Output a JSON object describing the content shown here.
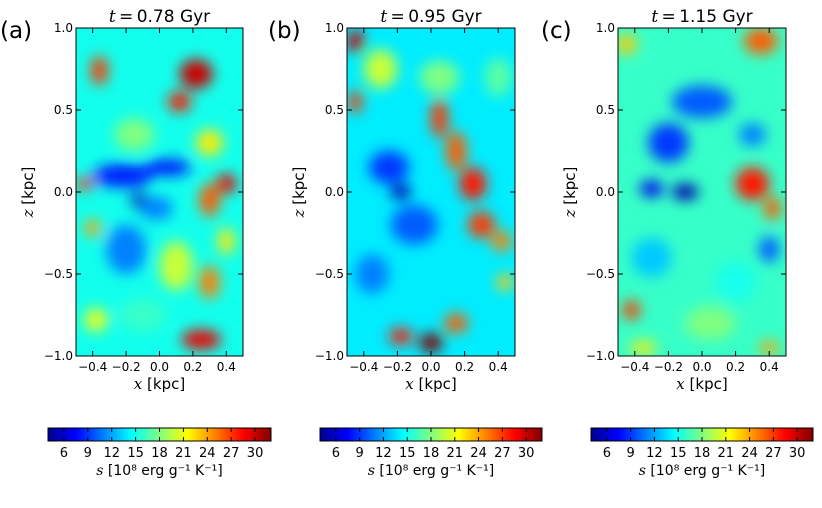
{
  "figure": {
    "colormap": [
      "#00008f",
      "#0000ff",
      "#0080ff",
      "#00ffff",
      "#80ff80",
      "#ffff00",
      "#ff8000",
      "#ff0000",
      "#800000"
    ]
  },
  "chart_data": [
    {
      "type": "heatmap",
      "panel_label": "(a)",
      "title": "t = 0.78 Gyr",
      "time": {
        "symbol": "t",
        "value": "0.78",
        "unit": "Gyr"
      },
      "xlabel": "x [kpc]",
      "ylabel": "z [kpc]",
      "xlim": [
        -0.5,
        0.5
      ],
      "ylim": [
        -1.0,
        1.0
      ],
      "xticks": [
        -0.4,
        -0.2,
        0.0,
        0.2,
        0.4
      ],
      "xtick_labels": [
        "−0.4",
        "−0.2",
        "0.0",
        "0.2",
        "0.4"
      ],
      "yticks": [
        1.0,
        0.5,
        0.0,
        -0.5,
        -1.0
      ],
      "ytick_labels": [
        "1.0",
        "0.5",
        "0.0",
        "−0.5",
        "−1.0"
      ],
      "colorbar": {
        "range": [
          4,
          32
        ],
        "ticks": [
          6,
          9,
          12,
          15,
          18,
          21,
          24,
          27,
          30
        ],
        "tick_labels": [
          "6",
          "9",
          "12",
          "15",
          "18",
          "21",
          "24",
          "27",
          "30"
        ],
        "label": "s [10⁸ erg g⁻¹ K⁻¹]"
      },
      "field": {
        "background": 15,
        "features": [
          {
            "x": 0.22,
            "z": 0.72,
            "sx": 0.1,
            "sz": 0.09,
            "s": 30
          },
          {
            "x": 0.12,
            "z": 0.55,
            "sx": 0.07,
            "sz": 0.06,
            "s": 28
          },
          {
            "x": -0.36,
            "z": 0.74,
            "sx": 0.05,
            "sz": 0.09,
            "s": 27
          },
          {
            "x": 0.3,
            "z": 0.3,
            "sx": 0.08,
            "sz": 0.08,
            "s": 22
          },
          {
            "x": -0.15,
            "z": 0.35,
            "sx": 0.12,
            "sz": 0.1,
            "s": 18
          },
          {
            "x": -0.22,
            "z": 0.1,
            "sx": 0.18,
            "sz": 0.07,
            "s": 8
          },
          {
            "x": 0.05,
            "z": 0.15,
            "sx": 0.14,
            "sz": 0.05,
            "s": 8
          },
          {
            "x": -0.12,
            "z": -0.05,
            "sx": 0.05,
            "sz": 0.05,
            "s": 5
          },
          {
            "x": -0.02,
            "z": -0.1,
            "sx": 0.1,
            "sz": 0.07,
            "s": 11
          },
          {
            "x": -0.45,
            "z": 0.05,
            "sx": 0.05,
            "sz": 0.04,
            "s": 27
          },
          {
            "x": 0.4,
            "z": 0.05,
            "sx": 0.06,
            "sz": 0.06,
            "s": 29
          },
          {
            "x": 0.3,
            "z": -0.05,
            "sx": 0.06,
            "sz": 0.1,
            "s": 26
          },
          {
            "x": -0.4,
            "z": -0.22,
            "sx": 0.05,
            "sz": 0.05,
            "s": 24
          },
          {
            "x": -0.2,
            "z": -0.35,
            "sx": 0.12,
            "sz": 0.15,
            "s": 11
          },
          {
            "x": 0.1,
            "z": -0.45,
            "sx": 0.1,
            "sz": 0.15,
            "s": 20
          },
          {
            "x": 0.3,
            "z": -0.55,
            "sx": 0.06,
            "sz": 0.1,
            "s": 25
          },
          {
            "x": 0.25,
            "z": -0.9,
            "sx": 0.12,
            "sz": 0.06,
            "s": 29
          },
          {
            "x": -0.38,
            "z": -0.78,
            "sx": 0.07,
            "sz": 0.07,
            "s": 21
          },
          {
            "x": -0.1,
            "z": -0.75,
            "sx": 0.14,
            "sz": 0.1,
            "s": 16
          },
          {
            "x": 0.4,
            "z": -0.3,
            "sx": 0.05,
            "sz": 0.08,
            "s": 22
          }
        ]
      }
    },
    {
      "type": "heatmap",
      "panel_label": "(b)",
      "title": "t = 0.95 Gyr",
      "time": {
        "symbol": "t",
        "value": "0.95",
        "unit": "Gyr"
      },
      "xlabel": "x [kpc]",
      "ylabel": "z [kpc]",
      "xlim": [
        -0.5,
        0.5
      ],
      "ylim": [
        -1.0,
        1.0
      ],
      "xticks": [
        -0.4,
        -0.2,
        0.0,
        0.2,
        0.4
      ],
      "xtick_labels": [
        "−0.4",
        "−0.2",
        "0.0",
        "0.2",
        "0.4"
      ],
      "yticks": [
        1.0,
        0.5,
        0.0,
        -0.5,
        -1.0
      ],
      "ytick_labels": [
        "1.0",
        "0.5",
        "0.0",
        "−0.5",
        "−1.0"
      ],
      "colorbar": {
        "range": [
          4,
          32
        ],
        "ticks": [
          6,
          9,
          12,
          15,
          18,
          21,
          24,
          27,
          30
        ],
        "tick_labels": [
          "6",
          "9",
          "12",
          "15",
          "18",
          "21",
          "24",
          "27",
          "30"
        ],
        "label": "s [10⁸ erg g⁻¹ K⁻¹]"
      },
      "field": {
        "background": 14,
        "features": [
          {
            "x": -0.45,
            "z": 0.92,
            "sx": 0.05,
            "sz": 0.07,
            "s": 30
          },
          {
            "x": -0.45,
            "z": 0.55,
            "sx": 0.04,
            "sz": 0.07,
            "s": 27
          },
          {
            "x": -0.3,
            "z": 0.75,
            "sx": 0.1,
            "sz": 0.12,
            "s": 20
          },
          {
            "x": 0.05,
            "z": 0.7,
            "sx": 0.12,
            "sz": 0.1,
            "s": 18
          },
          {
            "x": 0.05,
            "z": 0.45,
            "sx": 0.05,
            "sz": 0.12,
            "s": 27
          },
          {
            "x": 0.15,
            "z": 0.25,
            "sx": 0.06,
            "sz": 0.12,
            "s": 26
          },
          {
            "x": 0.25,
            "z": 0.05,
            "sx": 0.08,
            "sz": 0.1,
            "s": 28
          },
          {
            "x": 0.3,
            "z": -0.2,
            "sx": 0.08,
            "sz": 0.08,
            "s": 27
          },
          {
            "x": 0.42,
            "z": -0.3,
            "sx": 0.06,
            "sz": 0.06,
            "s": 25
          },
          {
            "x": 0.44,
            "z": -0.55,
            "sx": 0.05,
            "sz": 0.05,
            "s": 23
          },
          {
            "x": -0.18,
            "z": 0.0,
            "sx": 0.06,
            "sz": 0.05,
            "s": 5
          },
          {
            "x": -0.25,
            "z": 0.15,
            "sx": 0.12,
            "sz": 0.1,
            "s": 9
          },
          {
            "x": -0.1,
            "z": -0.2,
            "sx": 0.14,
            "sz": 0.12,
            "s": 10
          },
          {
            "x": -0.35,
            "z": -0.5,
            "sx": 0.1,
            "sz": 0.12,
            "s": 11
          },
          {
            "x": 0.0,
            "z": -0.92,
            "sx": 0.07,
            "sz": 0.06,
            "s": 32
          },
          {
            "x": -0.18,
            "z": -0.88,
            "sx": 0.07,
            "sz": 0.05,
            "s": 28
          },
          {
            "x": 0.15,
            "z": -0.8,
            "sx": 0.07,
            "sz": 0.06,
            "s": 26
          },
          {
            "x": 0.4,
            "z": 0.7,
            "sx": 0.08,
            "sz": 0.12,
            "s": 17
          }
        ]
      }
    },
    {
      "type": "heatmap",
      "panel_label": "(c)",
      "title": "t = 1.15 Gyr",
      "time": {
        "symbol": "t",
        "value": "1.15",
        "unit": "Gyr"
      },
      "xlabel": "x [kpc]",
      "ylabel": "z [kpc]",
      "xlim": [
        -0.5,
        0.5
      ],
      "ylim": [
        -1.0,
        1.0
      ],
      "xticks": [
        -0.4,
        -0.2,
        0.0,
        0.2,
        0.4
      ],
      "xtick_labels": [
        "−0.4",
        "−0.2",
        "0.0",
        "0.2",
        "0.4"
      ],
      "yticks": [
        1.0,
        0.5,
        0.0,
        -0.5,
        -1.0
      ],
      "ytick_labels": [
        "1.0",
        "0.5",
        "0.0",
        "−0.5",
        "−1.0"
      ],
      "colorbar": {
        "range": [
          4,
          32
        ],
        "ticks": [
          6,
          9,
          12,
          15,
          18,
          21,
          24,
          27,
          30
        ],
        "tick_labels": [
          "6",
          "9",
          "12",
          "15",
          "18",
          "21",
          "24",
          "27",
          "30"
        ],
        "label": "s [10⁸ erg g⁻¹ K⁻¹]"
      },
      "field": {
        "background": 16,
        "features": [
          {
            "x": 0.35,
            "z": 0.92,
            "sx": 0.1,
            "sz": 0.08,
            "s": 26
          },
          {
            "x": -0.45,
            "z": 0.9,
            "sx": 0.06,
            "sz": 0.06,
            "s": 23
          },
          {
            "x": 0.0,
            "z": 0.55,
            "sx": 0.18,
            "sz": 0.1,
            "s": 10
          },
          {
            "x": -0.2,
            "z": 0.3,
            "sx": 0.12,
            "sz": 0.12,
            "s": 9
          },
          {
            "x": -0.1,
            "z": 0.0,
            "sx": 0.08,
            "sz": 0.05,
            "s": 5
          },
          {
            "x": -0.3,
            "z": 0.02,
            "sx": 0.07,
            "sz": 0.05,
            "s": 7
          },
          {
            "x": 0.3,
            "z": 0.05,
            "sx": 0.1,
            "sz": 0.1,
            "s": 28
          },
          {
            "x": 0.42,
            "z": -0.1,
            "sx": 0.05,
            "sz": 0.07,
            "s": 26
          },
          {
            "x": 0.4,
            "z": -0.35,
            "sx": 0.06,
            "sz": 0.08,
            "s": 10
          },
          {
            "x": 0.3,
            "z": 0.35,
            "sx": 0.08,
            "sz": 0.07,
            "s": 11
          },
          {
            "x": -0.3,
            "z": -0.4,
            "sx": 0.12,
            "sz": 0.12,
            "s": 13
          },
          {
            "x": -0.42,
            "z": -0.72,
            "sx": 0.05,
            "sz": 0.06,
            "s": 27
          },
          {
            "x": 0.2,
            "z": -0.55,
            "sx": 0.12,
            "sz": 0.12,
            "s": 15
          },
          {
            "x": 0.05,
            "z": -0.8,
            "sx": 0.15,
            "sz": 0.1,
            "s": 18
          },
          {
            "x": 0.4,
            "z": -0.95,
            "sx": 0.06,
            "sz": 0.04,
            "s": 24
          },
          {
            "x": -0.35,
            "z": -0.95,
            "sx": 0.08,
            "sz": 0.04,
            "s": 22
          }
        ]
      }
    }
  ]
}
